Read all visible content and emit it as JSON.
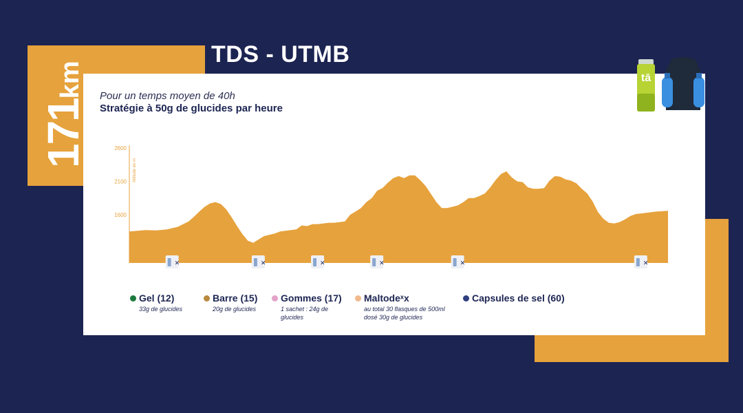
{
  "distance": {
    "value": "171",
    "unit": "km"
  },
  "title": "TDS - UTMB",
  "subtitle": "Pour un temps moyen de 40h",
  "strategy": "Stratégie à 50g de glucides par heure",
  "colors": {
    "background": "#1c2452",
    "accent": "#e6a23c",
    "card": "#ffffff",
    "profile": "#e6a23c"
  },
  "products": {
    "tube_label": "tā"
  },
  "chart_data": {
    "type": "area",
    "ylabel": "Altitude en m",
    "yticks": [
      1600,
      2100,
      2600
    ],
    "ylim": [
      1000,
      2620
    ],
    "xlim": [
      0,
      100
    ],
    "grid": false,
    "x": [
      0,
      3,
      5,
      7,
      9,
      11,
      12,
      13,
      14,
      15,
      16,
      17,
      18,
      19,
      20,
      21,
      22,
      23,
      24,
      25,
      26,
      27,
      28,
      29,
      30,
      31,
      32,
      33,
      34,
      35,
      36,
      37,
      38,
      39,
      40,
      41,
      42,
      43,
      44,
      45,
      46,
      47,
      48,
      49,
      50,
      51,
      52,
      53,
      54,
      55,
      56,
      57,
      58,
      59,
      60,
      61,
      62,
      63,
      64,
      65,
      66,
      67,
      68,
      69,
      70,
      71,
      72,
      73,
      74,
      75,
      76,
      77,
      78,
      79,
      80,
      81,
      82,
      83,
      84,
      85,
      86,
      87,
      88,
      89,
      90,
      91,
      92,
      93,
      94,
      95,
      96,
      97,
      98,
      99,
      100
    ],
    "y": [
      1350,
      1370,
      1365,
      1380,
      1420,
      1500,
      1570,
      1650,
      1720,
      1770,
      1790,
      1760,
      1680,
      1560,
      1430,
      1310,
      1210,
      1180,
      1230,
      1280,
      1300,
      1320,
      1350,
      1360,
      1370,
      1380,
      1440,
      1430,
      1460,
      1460,
      1470,
      1480,
      1480,
      1490,
      1500,
      1600,
      1650,
      1700,
      1790,
      1850,
      1960,
      2000,
      2080,
      2150,
      2180,
      2150,
      2190,
      2190,
      2120,
      2030,
      1910,
      1790,
      1700,
      1700,
      1720,
      1740,
      1790,
      1850,
      1850,
      1880,
      1920,
      2010,
      2120,
      2210,
      2250,
      2160,
      2100,
      2090,
      2010,
      1990,
      1990,
      2000,
      2110,
      2180,
      2170,
      2130,
      2110,
      2070,
      1990,
      1920,
      1800,
      1640,
      1540,
      1480,
      1470,
      1490,
      1530,
      1580,
      1610,
      1620,
      1630,
      1640,
      1650,
      1655,
      1660
    ],
    "markers": [
      {
        "x": 8,
        "label": "🥤✕"
      },
      {
        "x": 24,
        "label": "🥤✕"
      },
      {
        "x": 35,
        "label": "🥤✕"
      },
      {
        "x": 46,
        "label": "🥤✕"
      },
      {
        "x": 61,
        "label": "🥤✕"
      },
      {
        "x": 95,
        "label": "🥤✕"
      }
    ],
    "legend": [
      {
        "name": "Gel (12)",
        "note": "33g de glucides",
        "color": "#1a7a3c"
      },
      {
        "name": "Barre (15)",
        "note": "20g de glucides",
        "color": "#b9893f"
      },
      {
        "name": "Gommes (17)",
        "note": "1 sachet : 24g de glucides",
        "color": "#e3a3c9"
      },
      {
        "name": "Maltodeˣx",
        "note": "au total 30 flasques de 500ml dosé 30g de glucides",
        "color": "#f1b98c"
      },
      {
        "name": "Capsules de sel (60)",
        "note": "",
        "color": "#2f3f7f"
      }
    ]
  }
}
